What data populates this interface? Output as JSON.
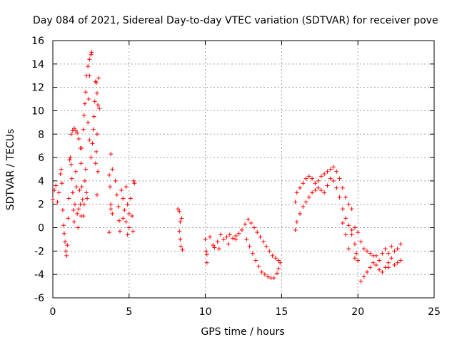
{
  "chart_data": {
    "type": "scatter",
    "title": "Day 084 of 2021, Sidereal Day-to-day VTEC variation (SDTVAR) for receiver pove",
    "xlabel": "GPS time / hours",
    "ylabel": "SDTVAR / TECUs",
    "xlim": [
      0,
      25
    ],
    "ylim": [
      -6,
      16
    ],
    "xticks": [
      0,
      5,
      10,
      15,
      20,
      25
    ],
    "yticks": [
      -6,
      -4,
      -2,
      0,
      2,
      4,
      6,
      8,
      10,
      12,
      14,
      16
    ],
    "grid": true,
    "marker": "+",
    "color": "#ff0000",
    "series": [
      {
        "name": "SDTVAR",
        "points": [
          [
            0.0,
            2.4
          ],
          [
            0.1,
            3.2
          ],
          [
            0.2,
            3.6
          ],
          [
            0.3,
            2.2
          ],
          [
            0.4,
            3.0
          ],
          [
            0.5,
            4.6
          ],
          [
            0.55,
            5.0
          ],
          [
            0.6,
            3.8
          ],
          [
            0.65,
            1.5
          ],
          [
            0.7,
            0.2
          ],
          [
            0.75,
            -0.5
          ],
          [
            0.8,
            -1.2
          ],
          [
            0.85,
            -2.0
          ],
          [
            0.9,
            -2.4
          ],
          [
            0.95,
            -1.5
          ],
          [
            1.0,
            0.8
          ],
          [
            1.05,
            2.5
          ],
          [
            1.1,
            5.8
          ],
          [
            1.15,
            6.0
          ],
          [
            1.2,
            5.4
          ],
          [
            1.25,
            4.2
          ],
          [
            1.3,
            3.0
          ],
          [
            1.35,
            1.5
          ],
          [
            1.4,
            0.5
          ],
          [
            1.45,
            2.0
          ],
          [
            1.5,
            4.8
          ],
          [
            1.55,
            3.5
          ],
          [
            1.6,
            1.2
          ],
          [
            1.65,
            0.0
          ],
          [
            1.7,
            1.6
          ],
          [
            1.75,
            3.2
          ],
          [
            1.8,
            2.0
          ],
          [
            1.85,
            1.0
          ],
          [
            1.9,
            3.5
          ],
          [
            1.95,
            2.4
          ],
          [
            2.0,
            1.0
          ],
          [
            2.05,
            2.0
          ],
          [
            2.1,
            4.0
          ],
          [
            2.15,
            5.0
          ],
          [
            2.2,
            3.0
          ],
          [
            2.25,
            2.5
          ],
          [
            1.2,
            8.0
          ],
          [
            1.3,
            8.3
          ],
          [
            1.4,
            8.5
          ],
          [
            1.5,
            8.3
          ],
          [
            1.6,
            8.1
          ],
          [
            1.7,
            7.6
          ],
          [
            1.8,
            6.8
          ],
          [
            1.85,
            5.5
          ],
          [
            1.9,
            6.8
          ],
          [
            2.0,
            8.4
          ],
          [
            2.05,
            9.6
          ],
          [
            2.1,
            10.6
          ],
          [
            2.15,
            11.6
          ],
          [
            2.2,
            13.0
          ],
          [
            2.3,
            13.8
          ],
          [
            2.4,
            14.4
          ],
          [
            2.5,
            14.8
          ],
          [
            2.55,
            15.0
          ],
          [
            2.4,
            13.0
          ],
          [
            2.35,
            11.0
          ],
          [
            2.3,
            9.0
          ],
          [
            2.4,
            7.5
          ],
          [
            2.5,
            6.0
          ],
          [
            2.6,
            7.2
          ],
          [
            2.65,
            8.4
          ],
          [
            2.7,
            9.5
          ],
          [
            2.75,
            10.8
          ],
          [
            2.8,
            12.5
          ],
          [
            2.85,
            12.4
          ],
          [
            2.9,
            11.5
          ],
          [
            2.95,
            10.5
          ],
          [
            3.0,
            12.8
          ],
          [
            3.05,
            10.2
          ],
          [
            2.9,
            8.0
          ],
          [
            2.85,
            6.5
          ],
          [
            2.8,
            5.5
          ],
          [
            2.9,
            2.8
          ],
          [
            2.95,
            4.8
          ],
          [
            3.8,
            6.3
          ],
          [
            3.9,
            5.0
          ],
          [
            3.7,
            4.5
          ],
          [
            3.75,
            3.5
          ],
          [
            3.8,
            2.0
          ],
          [
            3.9,
            1.2
          ],
          [
            3.7,
            -0.4
          ],
          [
            3.8,
            1.6
          ],
          [
            4.1,
            4.0
          ],
          [
            4.2,
            2.8
          ],
          [
            4.3,
            1.8
          ],
          [
            4.35,
            0.6
          ],
          [
            4.4,
            -0.3
          ],
          [
            4.5,
            3.2
          ],
          [
            4.6,
            2.5
          ],
          [
            4.7,
            1.5
          ],
          [
            4.8,
            0.5
          ],
          [
            4.9,
            -0.6
          ],
          [
            5.0,
            0.0
          ],
          [
            5.1,
            2.5
          ],
          [
            5.2,
            1.0
          ],
          [
            5.25,
            -0.3
          ],
          [
            5.3,
            4.0
          ],
          [
            5.35,
            3.8
          ],
          [
            4.8,
            3.5
          ],
          [
            4.9,
            2.0
          ],
          [
            5.0,
            1.2
          ],
          [
            4.6,
            0.8
          ],
          [
            8.2,
            1.6
          ],
          [
            8.3,
            1.4
          ],
          [
            8.35,
            0.5
          ],
          [
            8.3,
            -0.3
          ],
          [
            8.35,
            -1.0
          ],
          [
            8.4,
            -1.6
          ],
          [
            8.5,
            -1.9
          ],
          [
            8.45,
            0.8
          ],
          [
            10.0,
            -1.0
          ],
          [
            10.05,
            -2.0
          ],
          [
            10.1,
            -3.0
          ],
          [
            10.1,
            -2.3
          ],
          [
            10.3,
            -0.8
          ],
          [
            10.5,
            -1.5
          ],
          [
            10.6,
            -1.7
          ],
          [
            10.8,
            -1.2
          ],
          [
            11.0,
            -0.6
          ],
          [
            11.2,
            -1.0
          ],
          [
            11.4,
            -0.8
          ],
          [
            11.6,
            -0.6
          ],
          [
            11.8,
            -0.9
          ],
          [
            12.0,
            -0.7
          ],
          [
            12.2,
            -0.5
          ],
          [
            12.4,
            -0.2
          ],
          [
            12.6,
            0.3
          ],
          [
            12.8,
            0.7
          ],
          [
            13.0,
            0.4
          ],
          [
            13.2,
            0.0
          ],
          [
            13.4,
            -0.4
          ],
          [
            12.7,
            -1.0
          ],
          [
            12.9,
            -1.6
          ],
          [
            13.1,
            -2.2
          ],
          [
            13.3,
            -2.8
          ],
          [
            13.5,
            -3.3
          ],
          [
            13.7,
            -3.8
          ],
          [
            13.9,
            -4.0
          ],
          [
            14.1,
            -4.2
          ],
          [
            14.3,
            -4.3
          ],
          [
            14.5,
            -4.3
          ],
          [
            14.7,
            -3.9
          ],
          [
            14.8,
            -3.5
          ],
          [
            14.9,
            -3.0
          ],
          [
            13.6,
            -0.8
          ],
          [
            13.8,
            -1.2
          ],
          [
            14.0,
            -1.6
          ],
          [
            14.2,
            -2.0
          ],
          [
            14.4,
            -2.4
          ],
          [
            14.6,
            -2.6
          ],
          [
            14.8,
            -2.8
          ],
          [
            12.0,
            -1.0
          ],
          [
            11.5,
            -1.4
          ],
          [
            10.9,
            -1.8
          ],
          [
            15.9,
            2.2
          ],
          [
            16.0,
            3.0
          ],
          [
            16.2,
            3.4
          ],
          [
            16.4,
            3.8
          ],
          [
            16.6,
            4.2
          ],
          [
            16.8,
            4.4
          ],
          [
            17.0,
            4.2
          ],
          [
            17.2,
            3.8
          ],
          [
            17.4,
            4.0
          ],
          [
            17.6,
            4.4
          ],
          [
            17.8,
            4.6
          ],
          [
            18.0,
            4.8
          ],
          [
            18.2,
            5.0
          ],
          [
            18.4,
            5.2
          ],
          [
            18.6,
            4.8
          ],
          [
            18.8,
            4.2
          ],
          [
            19.0,
            3.4
          ],
          [
            19.2,
            2.6
          ],
          [
            19.4,
            2.0
          ],
          [
            19.6,
            1.6
          ],
          [
            15.9,
            -0.2
          ],
          [
            16.0,
            0.5
          ],
          [
            16.2,
            1.2
          ],
          [
            16.4,
            1.8
          ],
          [
            16.6,
            2.2
          ],
          [
            16.8,
            2.6
          ],
          [
            17.0,
            3.0
          ],
          [
            17.2,
            3.2
          ],
          [
            17.4,
            3.4
          ],
          [
            17.6,
            3.2
          ],
          [
            17.8,
            3.0
          ],
          [
            18.0,
            3.6
          ],
          [
            18.2,
            4.2
          ],
          [
            18.4,
            4.0
          ],
          [
            18.6,
            3.4
          ],
          [
            18.8,
            2.6
          ],
          [
            19.0,
            1.6
          ],
          [
            19.2,
            0.8
          ],
          [
            19.4,
            0.2
          ],
          [
            19.6,
            -0.6
          ],
          [
            19.8,
            -1.4
          ],
          [
            19.9,
            -2.2
          ],
          [
            20.0,
            -2.8
          ],
          [
            19.6,
            -0.2
          ],
          [
            19.8,
            0.0
          ],
          [
            20.0,
            -0.4
          ],
          [
            20.2,
            -1.2
          ],
          [
            20.4,
            -1.8
          ],
          [
            20.6,
            -2.0
          ],
          [
            20.8,
            -2.2
          ],
          [
            21.0,
            -2.4
          ],
          [
            20.2,
            -4.6
          ],
          [
            20.4,
            -4.2
          ],
          [
            20.6,
            -3.8
          ],
          [
            20.8,
            -3.4
          ],
          [
            21.0,
            -3.0
          ],
          [
            21.2,
            -3.2
          ],
          [
            21.4,
            -3.6
          ],
          [
            21.6,
            -3.8
          ],
          [
            21.8,
            -3.4
          ],
          [
            22.0,
            -3.0
          ],
          [
            22.2,
            -2.6
          ],
          [
            22.4,
            -3.2
          ],
          [
            22.6,
            -3.0
          ],
          [
            22.8,
            -2.8
          ],
          [
            21.6,
            -2.2
          ],
          [
            21.8,
            -1.8
          ],
          [
            22.0,
            -2.2
          ],
          [
            22.2,
            -1.6
          ],
          [
            22.4,
            -2.0
          ],
          [
            22.6,
            -1.8
          ],
          [
            22.8,
            -1.4
          ],
          [
            21.4,
            -2.8
          ],
          [
            21.2,
            -2.4
          ],
          [
            22.0,
            -3.4
          ],
          [
            19.8,
            -2.6
          ],
          [
            19.4,
            -1.8
          ],
          [
            19.2,
            -0.6
          ],
          [
            19.0,
            0.4
          ]
        ]
      }
    ]
  }
}
